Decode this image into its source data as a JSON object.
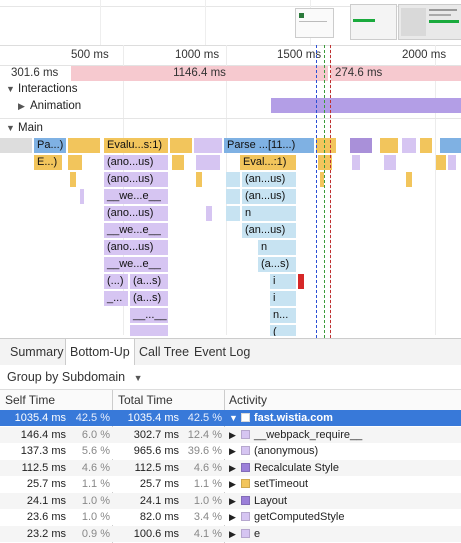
{
  "ruler": {
    "ticks": [
      "500 ms",
      "1000 ms",
      "1500 ms",
      "2000 ms"
    ]
  },
  "frames": [
    {
      "label": "301.6 ms"
    },
    {
      "label": "1146.4 ms"
    },
    {
      "label": "274.6 ms"
    }
  ],
  "tracks": {
    "interactions": "Interactions",
    "animation": "Animation",
    "main": "Main"
  },
  "flame": {
    "row0": [
      "Pa...)",
      "Evalu...s:1)",
      "Parse ...[11...)"
    ],
    "row1": [
      "E...)",
      "(ano...us)",
      "Eval...:1)"
    ],
    "row2": [
      "(ano...us)",
      "(an...us)"
    ],
    "row3": [
      "__we...e__",
      "(an...us)"
    ],
    "row4": [
      "(ano...us)",
      "n"
    ],
    "row5": [
      "__we...e__",
      "(an...us)"
    ],
    "row6": [
      "(ano...us)",
      "n"
    ],
    "row7": [
      "__we...e__",
      "(a...s)"
    ],
    "row8": [
      "(...)",
      "(a...s)",
      "i"
    ],
    "row9": [
      "_...",
      "(a...s)",
      "i"
    ],
    "row10": [
      "__...__",
      "n..."
    ],
    "row11": [
      "(",
      "("
    ]
  },
  "tabs": [
    "Summary",
    "Bottom-Up",
    "Call Tree",
    "Event Log"
  ],
  "active_tab": "Bottom-Up",
  "group_by": "Group by Subdomain",
  "table": {
    "headers": [
      "Self Time",
      "Total Time",
      "Activity"
    ],
    "rows": [
      {
        "self": "1035.4 ms",
        "self_pct": "42.5 %",
        "total": "1035.4 ms",
        "total_pct": "42.5 %",
        "activity": "fast.wistia.com",
        "color": "#ffffff",
        "expanded": true,
        "selected": true
      },
      {
        "self": "146.4 ms",
        "self_pct": "6.0 %",
        "total": "302.7 ms",
        "total_pct": "12.4 %",
        "activity": "__webpack_require__",
        "color": "#d6c5f2"
      },
      {
        "self": "137.3 ms",
        "self_pct": "5.6 %",
        "total": "965.6 ms",
        "total_pct": "39.6 %",
        "activity": "(anonymous)",
        "color": "#d6c5f2"
      },
      {
        "self": "112.5 ms",
        "self_pct": "4.6 %",
        "total": "112.5 ms",
        "total_pct": "4.6 %",
        "activity": "Recalculate Style",
        "color": "#9b7fd9"
      },
      {
        "self": "25.7 ms",
        "self_pct": "1.1 %",
        "total": "25.7 ms",
        "total_pct": "1.1 %",
        "activity": "setTimeout",
        "color": "#f2c55c"
      },
      {
        "self": "24.1 ms",
        "self_pct": "1.0 %",
        "total": "24.1 ms",
        "total_pct": "1.0 %",
        "activity": "Layout",
        "color": "#9b7fd9"
      },
      {
        "self": "23.6 ms",
        "self_pct": "1.0 %",
        "total": "82.0 ms",
        "total_pct": "3.4 %",
        "activity": "getComputedStyle",
        "color": "#d6c5f2"
      },
      {
        "self": "23.2 ms",
        "self_pct": "0.9 %",
        "total": "100.6 ms",
        "total_pct": "4.1 %",
        "activity": "e",
        "color": "#d6c5f2"
      }
    ]
  },
  "colors": {
    "selected_row": "#3879d9",
    "frame": "#f6c9cf",
    "animation": "#b39ee6"
  }
}
